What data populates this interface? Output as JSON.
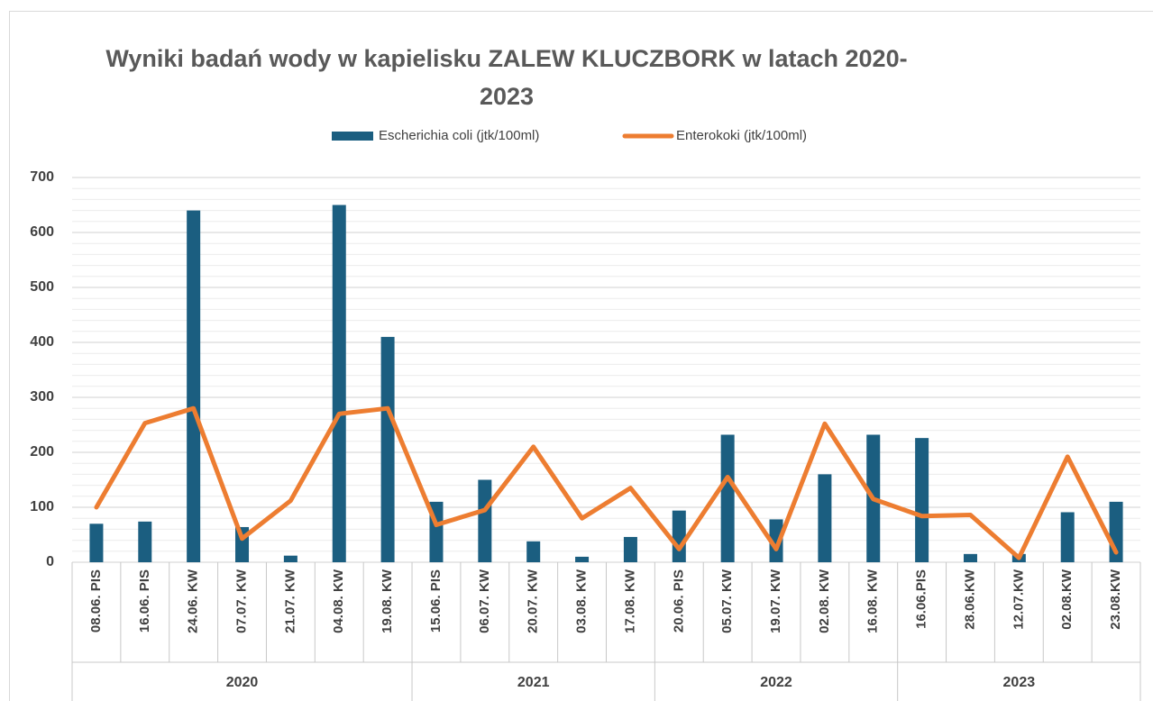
{
  "chart_data": {
    "type": "bar_line",
    "title": "Wyniki badań wody w kapielisku ZALEW KLUCZBORK w latach 2020-2023",
    "categories": [
      "08.06. PIS",
      "16.06. PIS",
      "24.06. KW",
      "07.07. KW",
      "21.07. KW",
      "04.08. KW",
      "19.08. KW",
      "15.06. PIS",
      "06.07. KW",
      "20.07. KW",
      "03.08. KW",
      "17.08. KW",
      "20.06. PIS",
      "05.07. KW",
      "19.07. KW",
      "02.08. KW",
      "16.08. KW",
      "16.06.PIS",
      "28.06.KW",
      "12.07.KW",
      "02.08.KW",
      "23.08.KW"
    ],
    "groups": [
      {
        "name": "2020",
        "count": 7
      },
      {
        "name": "2021",
        "count": 5
      },
      {
        "name": "2022",
        "count": 5
      },
      {
        "name": "2023",
        "count": 5
      }
    ],
    "series": [
      {
        "name": "Escherichia coli (jtk/100ml)",
        "type": "bar",
        "color": "#1b5e80",
        "values": [
          70,
          74,
          640,
          64,
          12,
          650,
          410,
          110,
          150,
          38,
          10,
          46,
          94,
          232,
          78,
          160,
          232,
          226,
          15,
          15,
          91,
          110
        ]
      },
      {
        "name": "Enterokoki (jtk/100ml)",
        "type": "line",
        "color": "#ed7d31",
        "values": [
          100,
          253,
          280,
          43,
          112,
          270,
          280,
          68,
          95,
          210,
          80,
          135,
          24,
          155,
          24,
          252,
          115,
          84,
          86,
          8,
          192,
          18
        ]
      }
    ],
    "ylim": [
      0,
      700
    ],
    "yticks": [
      0,
      100,
      200,
      300,
      400,
      500,
      600,
      700
    ],
    "grid": true,
    "minor_grid": true,
    "legend": "top"
  }
}
